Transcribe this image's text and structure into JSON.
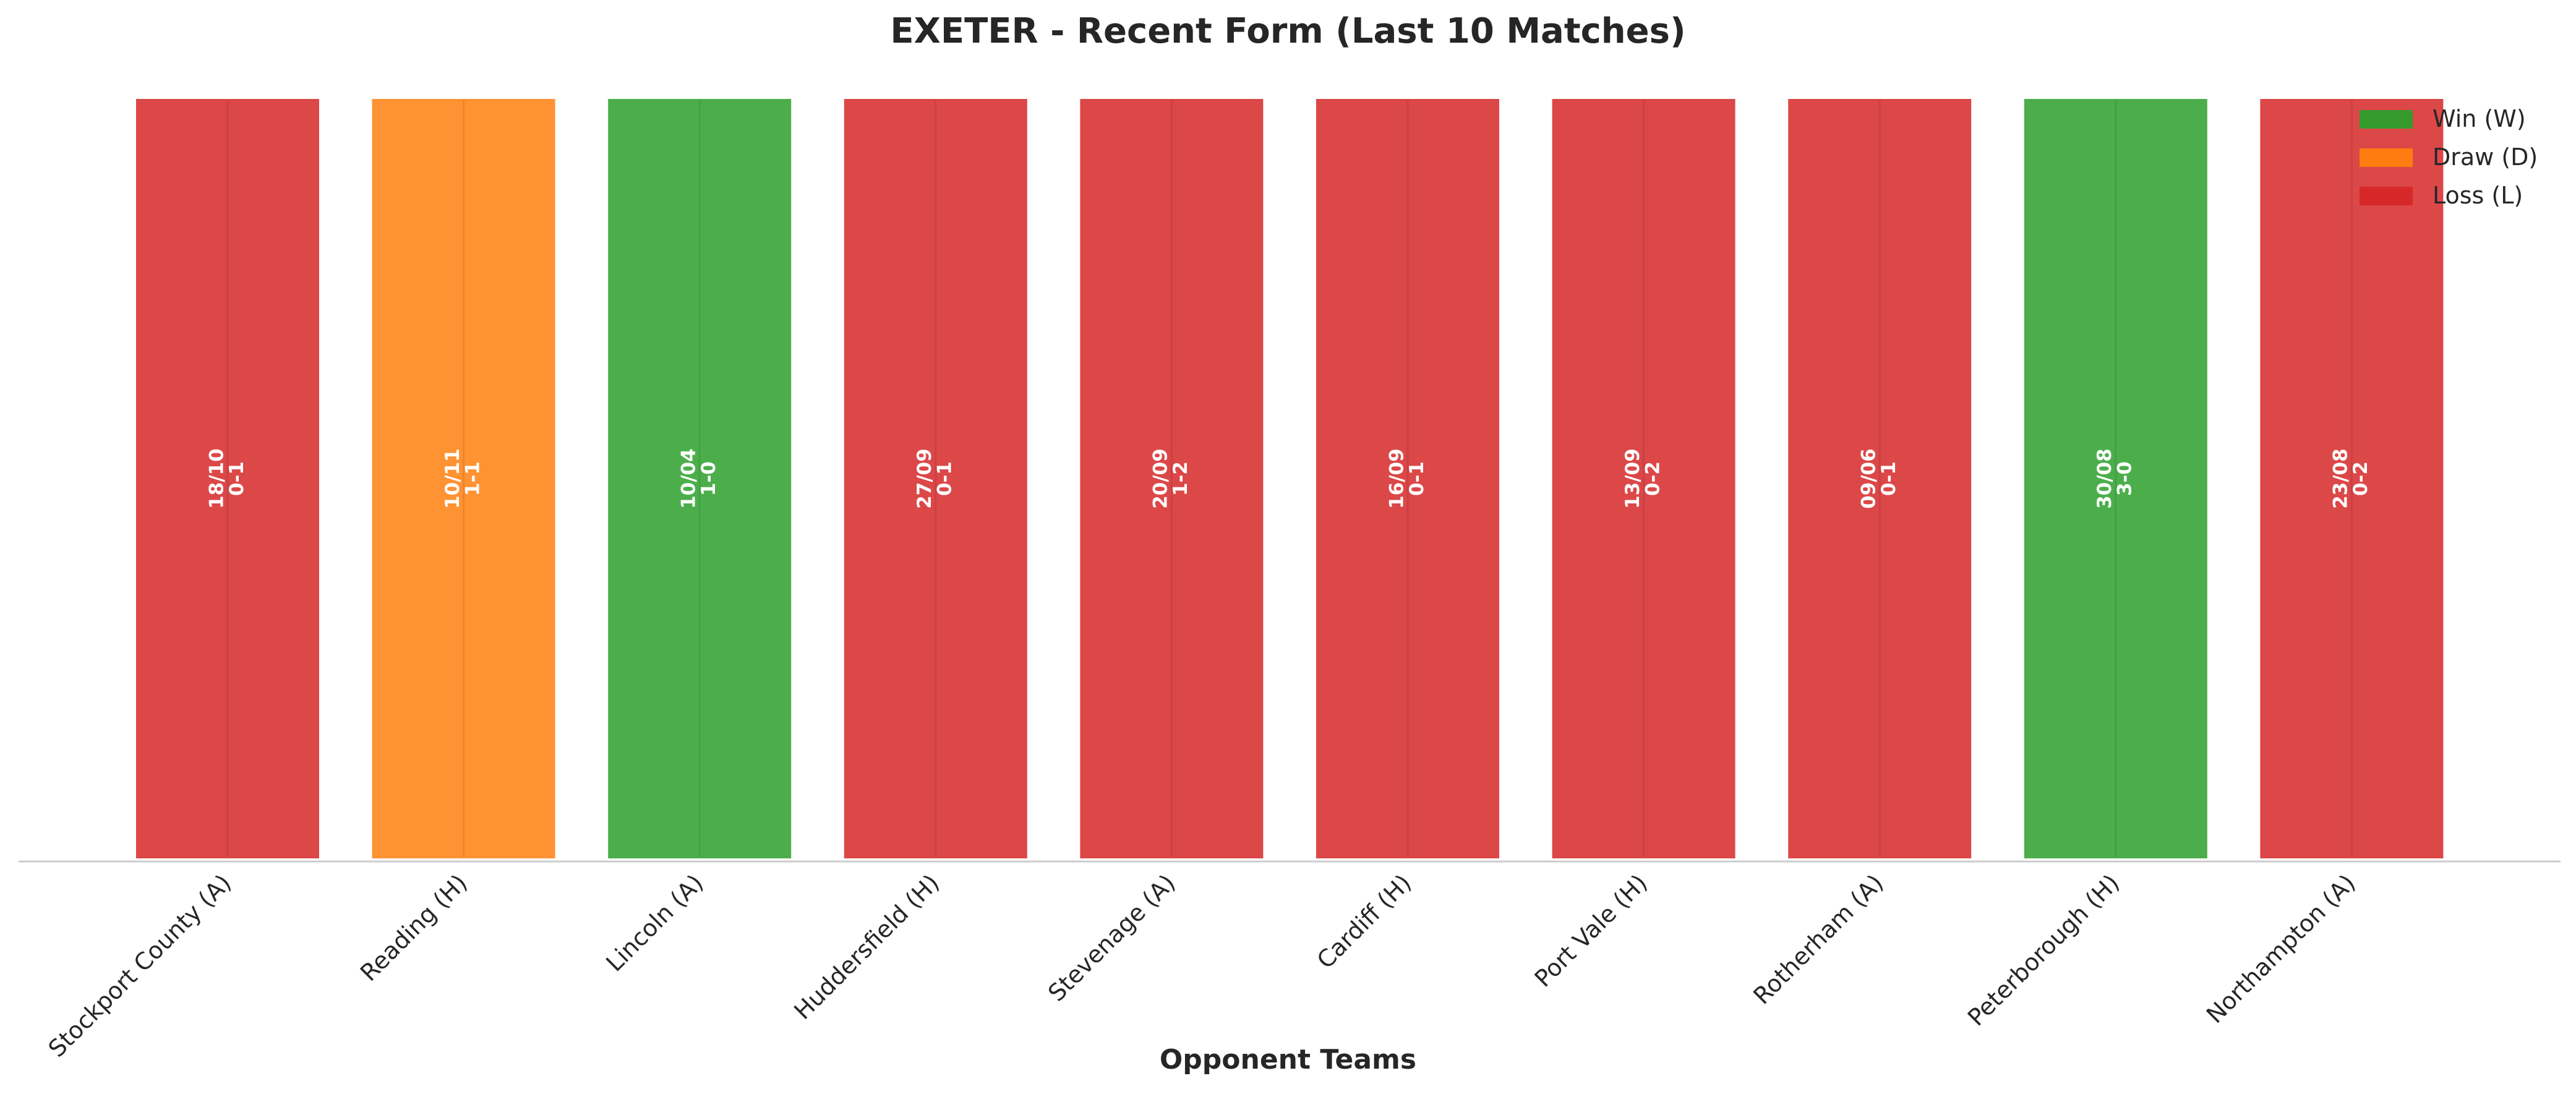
{
  "chart_data": {
    "type": "bar",
    "title": "EXETER - Recent Form (Last 10 Matches)",
    "xlabel": "Opponent Teams",
    "ylabel": "",
    "grid": false,
    "legend_position": "top-right",
    "categories": [
      "Stockport County (A)",
      "Reading (H)",
      "Lincoln (A)",
      "Huddersfield (H)",
      "Stevenage (A)",
      "Cardiff (H)",
      "Port Vale (H)",
      "Rotherham (A)",
      "Peterborough (H)",
      "Northampton (A)"
    ],
    "values": [
      1,
      1,
      1,
      1,
      1,
      1,
      1,
      1,
      1,
      1
    ],
    "results": [
      "L",
      "D",
      "W",
      "L",
      "L",
      "L",
      "L",
      "L",
      "W",
      "L"
    ],
    "dates": [
      "18/10",
      "10/11",
      "10/04",
      "27/09",
      "20/09",
      "16/09",
      "13/09",
      "09/06",
      "30/08",
      "23/08"
    ],
    "scores": [
      "0-1",
      "1-1",
      "1-0",
      "0-1",
      "1-2",
      "0-1",
      "0-2",
      "0-1",
      "3-0",
      "0-2"
    ],
    "legend": [
      {
        "key": "W",
        "label": "Win (W)",
        "color": "#2ca02c"
      },
      {
        "key": "D",
        "label": "Draw (D)",
        "color": "#ff7f0e"
      },
      {
        "key": "L",
        "label": "Loss (L)",
        "color": "#d62728"
      }
    ],
    "colors": {
      "W": "#2ca02c",
      "D": "#ff7f0e",
      "L": "#d62728"
    }
  }
}
